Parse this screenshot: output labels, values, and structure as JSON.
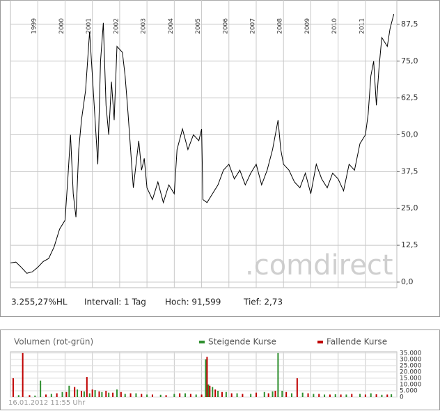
{
  "chart_data": [
    {
      "type": "line",
      "color": "#000000",
      "grid": true,
      "info": [
        "3.255,27%HL",
        "Intervall: 1 Tag",
        "Hoch: 91,599",
        "Tief: 2,73"
      ],
      "watermark": ".comdirect",
      "xlim": [
        1998.0,
        2012.15
      ],
      "xticks": [
        1999,
        2000,
        2001,
        2002,
        2003,
        2004,
        2005,
        2006,
        2007,
        2008,
        2009,
        2010,
        2011
      ],
      "ylim": [
        -1.9,
        91.5
      ],
      "yticks": [
        {
          "value": 0,
          "label": "0,0"
        },
        {
          "value": 12.5,
          "label": "12,5"
        },
        {
          "value": 25,
          "label": "25,0"
        },
        {
          "value": 37.5,
          "label": "37,5"
        },
        {
          "value": 50,
          "label": "50,0"
        },
        {
          "value": 62.5,
          "label": "62,5"
        },
        {
          "value": 75,
          "label": "75,0"
        },
        {
          "value": 87.5,
          "label": "87,5"
        }
      ],
      "x": [
        1998.0,
        1998.2,
        1998.4,
        1998.6,
        1998.8,
        1999.0,
        1999.2,
        1999.4,
        1999.6,
        1999.8,
        2000.0,
        2000.1,
        2000.2,
        2000.3,
        2000.4,
        2000.5,
        2000.6,
        2000.75,
        2000.9,
        2001.0,
        2001.1,
        2001.2,
        2001.3,
        2001.4,
        2001.5,
        2001.6,
        2001.7,
        2001.8,
        2001.9,
        2002.1,
        2002.2,
        2002.3,
        2002.4,
        2002.5,
        2002.6,
        2002.7,
        2002.8,
        2002.9,
        2003.0,
        2003.2,
        2003.4,
        2003.6,
        2003.8,
        2004.0,
        2004.1,
        2004.3,
        2004.5,
        2004.7,
        2004.9,
        2005.0,
        2005.05,
        2005.2,
        2005.4,
        2005.6,
        2005.8,
        2006.0,
        2006.2,
        2006.4,
        2006.6,
        2006.8,
        2007.0,
        2007.2,
        2007.4,
        2007.6,
        2007.8,
        2007.9,
        2008.0,
        2008.2,
        2008.4,
        2008.6,
        2008.8,
        2009.0,
        2009.2,
        2009.4,
        2009.6,
        2009.8,
        2010.0,
        2010.2,
        2010.4,
        2010.6,
        2010.8,
        2011.0,
        2011.1,
        2011.2,
        2011.3,
        2011.4,
        2011.5,
        2011.6,
        2011.8,
        2011.9,
        2012.04
      ],
      "values": [
        6.5,
        6.8,
        5,
        3,
        3.5,
        5,
        7,
        8,
        12,
        18,
        21,
        35,
        50,
        30,
        22,
        45,
        55,
        65,
        85,
        70,
        55,
        40,
        75,
        88,
        60,
        50,
        68,
        55,
        80,
        78,
        70,
        58,
        45,
        32,
        40,
        48,
        38,
        42,
        32,
        28,
        34,
        27,
        33,
        30,
        45,
        52,
        45,
        50,
        48,
        52,
        28,
        27,
        30,
        33,
        38,
        40,
        35,
        38,
        33,
        37,
        40,
        33,
        38,
        45,
        55,
        45,
        40,
        38,
        34,
        32,
        37,
        30,
        40,
        35,
        32,
        37,
        35,
        31,
        40,
        38,
        47,
        50,
        57,
        70,
        75,
        60,
        73,
        83,
        80,
        86,
        91
      ]
    },
    {
      "type": "bar",
      "title": "Volumen (rot-grün)",
      "footer": "16.01.2012 11:55 Uhr",
      "xlim": [
        1998.0,
        2012.15
      ],
      "ylim": [
        0,
        36000
      ],
      "yticks": [
        0,
        {
          "value": 5000,
          "label": "5.000"
        },
        {
          "value": 10000,
          "label": "10.000"
        },
        {
          "value": 15000,
          "label": "15.000"
        },
        {
          "value": 20000,
          "label": "20.000"
        },
        {
          "value": 25000,
          "label": "25.000"
        },
        {
          "value": 30000,
          "label": "30.000"
        },
        {
          "value": 35000,
          "label": "35.000"
        }
      ],
      "series": [
        {
          "name": "Steigende Kurse",
          "color": "#2f8f2f",
          "x": [
            1998.3,
            1998.9,
            1999.1,
            1999.5,
            1999.9,
            2000.15,
            2000.45,
            2000.7,
            2000.9,
            2001.1,
            2001.35,
            2001.6,
            2001.9,
            2002.2,
            2002.6,
            2003.0,
            2003.5,
            2004.0,
            2004.4,
            2004.8,
            2005.15,
            2005.25,
            2005.4,
            2005.6,
            2005.9,
            2006.3,
            2006.8,
            2007.3,
            2007.6,
            2007.8,
            2007.95,
            2008.3,
            2008.7,
            2009.1,
            2009.5,
            2009.9,
            2010.3,
            2010.8,
            2011.2,
            2011.6,
            2011.95
          ],
          "values": [
            1500,
            1200,
            13000,
            2500,
            4000,
            9000,
            6000,
            4500,
            3000,
            5500,
            4000,
            3500,
            6000,
            2500,
            3000,
            2000,
            1800,
            2500,
            3000,
            2000,
            30000,
            10000,
            8000,
            5000,
            4000,
            3000,
            2500,
            4000,
            4500,
            35000,
            5000,
            3000,
            3500,
            2500,
            2000,
            2200,
            2000,
            2500,
            3000,
            1800,
            2200
          ]
        },
        {
          "name": "Fallende Kurse",
          "color": "#c00000",
          "x": [
            1998.1,
            1998.45,
            1998.7,
            1999.3,
            1999.7,
            2000.05,
            2000.35,
            2000.6,
            2000.8,
            2001.0,
            2001.25,
            2001.5,
            2001.75,
            2002.05,
            2002.4,
            2002.8,
            2003.2,
            2003.7,
            2004.2,
            2004.6,
            2005.0,
            2005.2,
            2005.3,
            2005.5,
            2005.75,
            2006.1,
            2006.5,
            2007.0,
            2007.45,
            2007.7,
            2008.1,
            2008.5,
            2008.9,
            2009.3,
            2009.7,
            2010.1,
            2010.5,
            2011.0,
            2011.4,
            2011.8
          ],
          "values": [
            15000,
            35000,
            1500,
            2000,
            3000,
            4000,
            8000,
            5000,
            16000,
            6000,
            4500,
            5000,
            3500,
            4000,
            3000,
            2500,
            2000,
            1500,
            3000,
            2500,
            2000,
            32000,
            9000,
            6000,
            4000,
            3000,
            2500,
            3500,
            3000,
            5000,
            4000,
            15000,
            3000,
            2500,
            2000,
            2000,
            2500,
            2000,
            2200,
            2000
          ]
        }
      ]
    }
  ]
}
